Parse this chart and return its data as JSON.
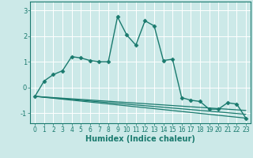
{
  "xlabel": "Humidex (Indice chaleur)",
  "ylabel": "",
  "background_color": "#cce9e8",
  "grid_color": "#ffffff",
  "line_color": "#1a7a6e",
  "xlim": [
    -0.5,
    23.5
  ],
  "ylim": [
    -1.4,
    3.35
  ],
  "yticks": [
    -1,
    0,
    1,
    2,
    3
  ],
  "xticks": [
    0,
    1,
    2,
    3,
    4,
    5,
    6,
    7,
    8,
    9,
    10,
    11,
    12,
    13,
    14,
    15,
    16,
    17,
    18,
    19,
    20,
    21,
    22,
    23
  ],
  "series": [
    {
      "x": [
        0,
        1,
        2,
        3,
        4,
        5,
        6,
        7,
        8,
        9,
        10,
        11,
        12,
        13,
        14,
        15,
        16,
        17,
        18,
        19,
        20,
        21,
        22,
        23
      ],
      "y": [
        -0.35,
        0.25,
        0.5,
        0.65,
        1.2,
        1.15,
        1.05,
        1.0,
        1.0,
        2.75,
        2.05,
        1.65,
        2.6,
        2.4,
        1.05,
        1.1,
        -0.4,
        -0.5,
        -0.55,
        -0.85,
        -0.85,
        -0.6,
        -0.65,
        -1.2
      ],
      "marker": "D",
      "markersize": 2.5,
      "linewidth": 1.0,
      "has_marker": true
    },
    {
      "x": [
        0,
        23
      ],
      "y": [
        -0.35,
        -1.2
      ],
      "marker": null,
      "markersize": 0,
      "linewidth": 0.9,
      "has_marker": false
    },
    {
      "x": [
        0,
        23
      ],
      "y": [
        -0.35,
        -1.05
      ],
      "marker": null,
      "markersize": 0,
      "linewidth": 0.9,
      "has_marker": false
    },
    {
      "x": [
        0,
        23
      ],
      "y": [
        -0.35,
        -0.9
      ],
      "marker": null,
      "markersize": 0,
      "linewidth": 0.9,
      "has_marker": false
    }
  ]
}
